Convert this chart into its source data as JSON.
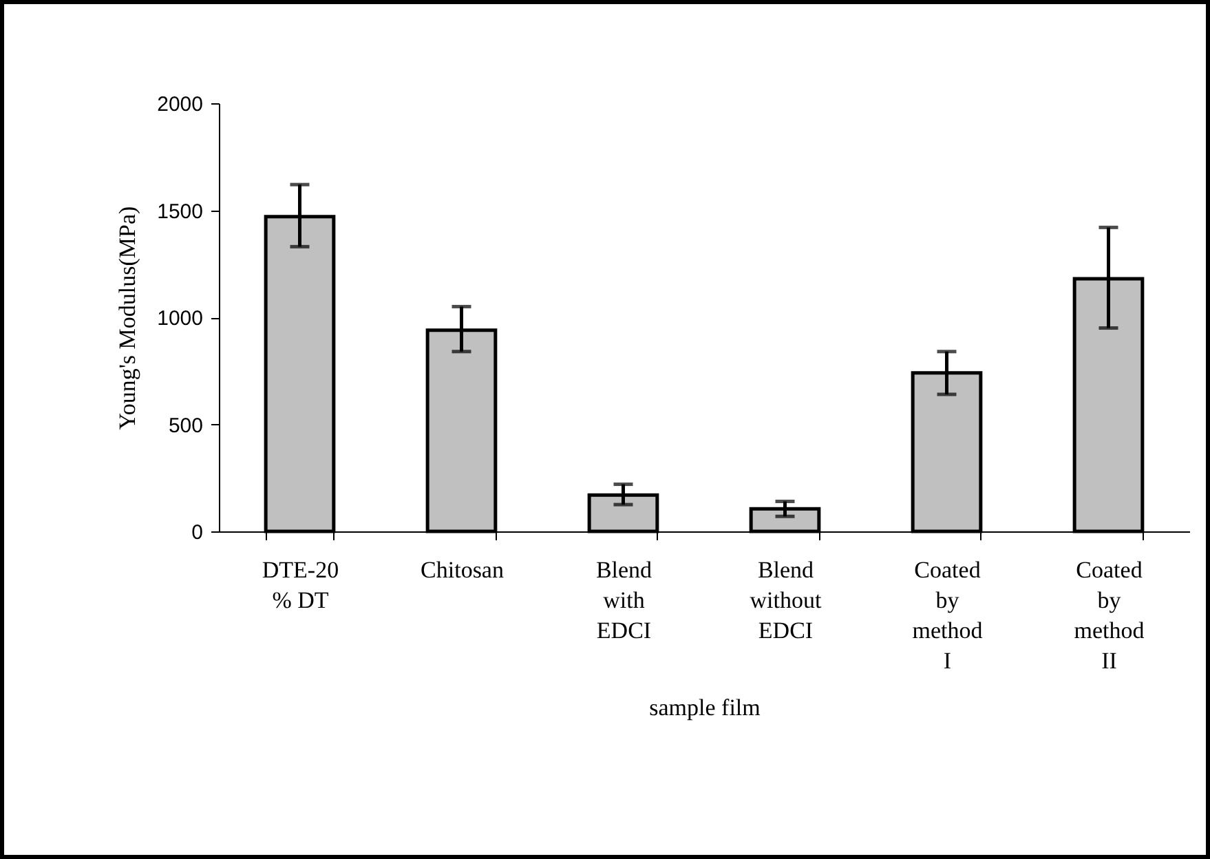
{
  "chart_data": {
    "type": "bar",
    "xlabel": "sample film",
    "ylabel": "Young's Modulus(MPa)",
    "categories": [
      "DTE-20 % DT",
      "Chitosan",
      "Blend with EDCI",
      "Blend without EDCI",
      "Coated by method I",
      "Coated by method II"
    ],
    "values": [
      1470,
      940,
      170,
      105,
      740,
      1180
    ],
    "errors": [
      [
        1330,
        1620
      ],
      [
        840,
        1050
      ],
      [
        125,
        220
      ],
      [
        70,
        140
      ],
      [
        640,
        840
      ],
      [
        950,
        1420
      ]
    ],
    "color": "#c0c0c0",
    "ylim": [
      0,
      2000
    ],
    "yticks": [
      0,
      500,
      1000,
      1500,
      2000
    ],
    "grid": false
  }
}
